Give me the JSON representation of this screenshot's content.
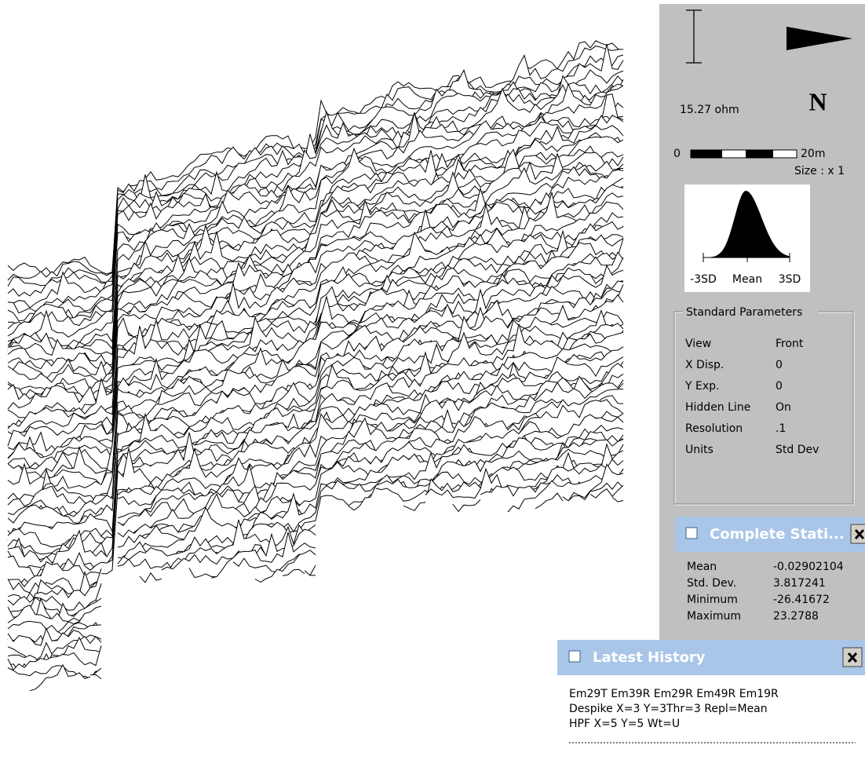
{
  "legend": {
    "value_label": "15.27 ohm",
    "north": "N",
    "scale_start": "0",
    "scale_end": "20m",
    "size": "Size : x 1"
  },
  "histogram": {
    "labels": [
      "-3SD",
      "Mean",
      "3SD"
    ]
  },
  "standard_parameters": {
    "title": "Standard Parameters",
    "rows": [
      [
        "View",
        "Front"
      ],
      [
        "X Disp.",
        "0"
      ],
      [
        "Y Exp.",
        "0"
      ],
      [
        "Hidden Line",
        "On"
      ],
      [
        "Resolution",
        ".1"
      ],
      [
        "Units",
        "Std Dev"
      ]
    ]
  },
  "complete_statistics": {
    "title": "Complete Stati...",
    "rows": [
      [
        "Mean",
        "-0.02902104"
      ],
      [
        "Std. Dev.",
        "3.817241"
      ],
      [
        "Minimum",
        "-26.41672"
      ],
      [
        "Maximum",
        "23.2788"
      ]
    ]
  },
  "latest_history": {
    "title": "Latest History",
    "lines": [
      "Em29T Em39R Em29R Em49R Em19R",
      "Despike X=3 Y=3Thr=3 Repl=Mean",
      "HPF X=5 Y=5 Wt=U"
    ]
  }
}
